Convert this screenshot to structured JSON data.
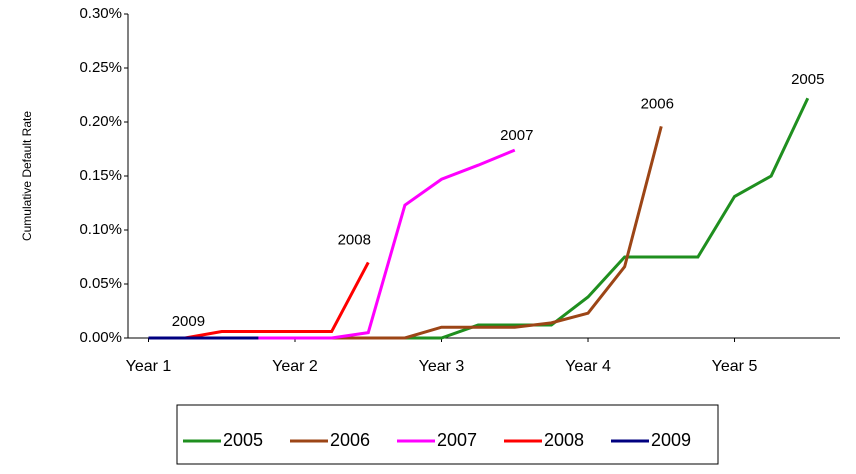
{
  "chart_data": {
    "type": "line",
    "y_label": "Cumulative Default Rate",
    "x": [
      1,
      1.25,
      1.5,
      1.75,
      2,
      2.25,
      2.5,
      2.75,
      3,
      3.25,
      3.5,
      3.75,
      4,
      4.25,
      4.5,
      4.75,
      5,
      5.25,
      5.5
    ],
    "xlim": [
      0.86,
      5.72
    ],
    "xticks": [
      {
        "value": 1,
        "label": "Year 1"
      },
      {
        "value": 2,
        "label": "Year 2"
      },
      {
        "value": 3,
        "label": "Year 3"
      },
      {
        "value": 4,
        "label": "Year 4"
      },
      {
        "value": 5,
        "label": "Year 5"
      }
    ],
    "ylim": [
      0,
      0.3
    ],
    "yticks": [
      {
        "value": 0,
        "label": "0.00%"
      },
      {
        "value": 0.05,
        "label": "0.05%"
      },
      {
        "value": 0.1,
        "label": "0.10%"
      },
      {
        "value": 0.15,
        "label": "0.15%"
      },
      {
        "value": 0.2,
        "label": "0.20%"
      },
      {
        "value": 0.25,
        "label": "0.25%"
      },
      {
        "value": 0.3,
        "label": "0.30%"
      }
    ],
    "grid": false,
    "legend": "bottom",
    "series": [
      {
        "name": "2005",
        "color": "#1f8f1f",
        "values": [
          0,
          0,
          0,
          0,
          0,
          0,
          0,
          0,
          0,
          0.012,
          0.012,
          0.012,
          0.038,
          0.075,
          0.075,
          0.075,
          0.131,
          0.15,
          0.222
        ]
      },
      {
        "name": "2006",
        "color": "#9c4516",
        "values": [
          0,
          0,
          0,
          0,
          0,
          0,
          0,
          0,
          0.01,
          0.01,
          0.01,
          0.014,
          0.023,
          0.066,
          0.196,
          null,
          null,
          null,
          null
        ]
      },
      {
        "name": "2007",
        "color": "#ff00ff",
        "values": [
          0,
          0,
          0,
          0,
          0,
          0,
          0.005,
          0.123,
          0.147,
          0.16,
          0.174,
          null,
          null,
          null,
          null,
          null,
          null,
          null,
          null
        ]
      },
      {
        "name": "2008",
        "color": "#ff0000",
        "values": [
          0,
          0,
          0.006,
          0.006,
          0.006,
          0.006,
          0.07,
          null,
          null,
          null,
          null,
          null,
          null,
          null,
          null,
          null,
          null,
          null,
          null
        ]
      },
      {
        "name": "2009",
        "color": "#000080",
        "values": [
          0,
          0,
          0,
          0,
          null,
          null,
          null,
          null,
          null,
          null,
          null,
          null,
          null,
          null,
          null,
          null,
          null,
          null,
          null
        ]
      }
    ]
  }
}
